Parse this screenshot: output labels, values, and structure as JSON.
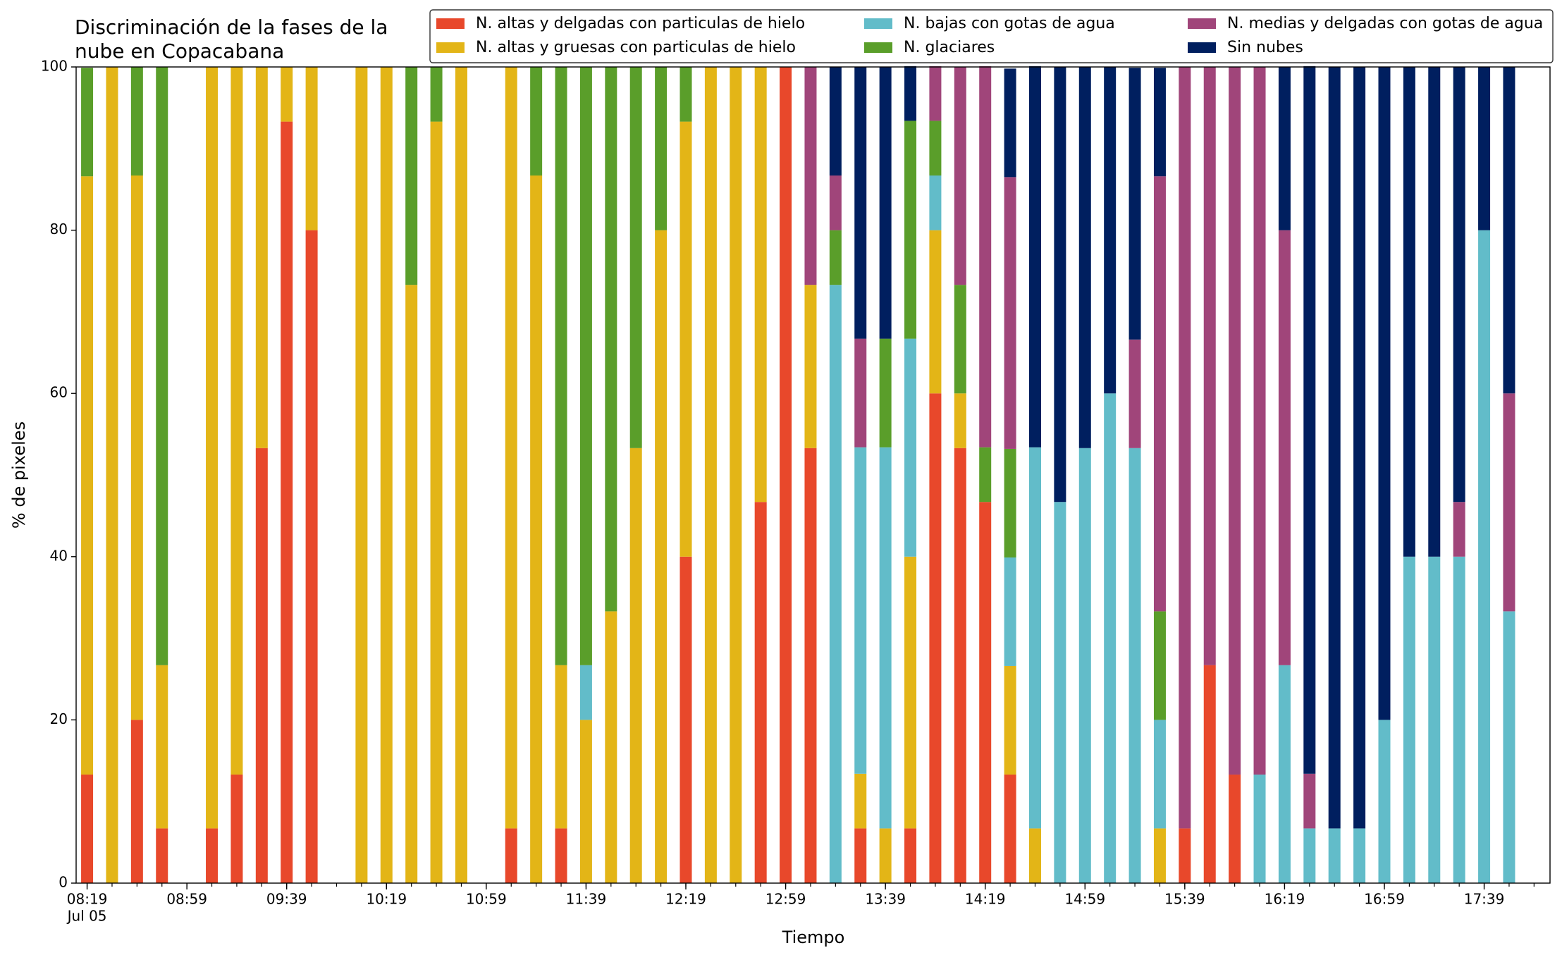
{
  "chart_data": {
    "type": "stacked_bar",
    "title": "Discriminación de la fases de la\nnube en Copacabana",
    "xlabel": "Tiempo",
    "ylabel": "% de pixeles",
    "x_date_label": "Jul 05",
    "categories": [
      "08:19",
      "08:29",
      "08:39",
      "08:49",
      "08:59",
      "09:09",
      "09:19",
      "09:29",
      "09:39",
      "09:49",
      "09:59",
      "10:09",
      "10:19",
      "10:29",
      "10:39",
      "10:49",
      "10:59",
      "11:09",
      "11:19",
      "11:29",
      "11:39",
      "11:49",
      "11:59",
      "12:09",
      "12:19",
      "12:29",
      "12:39",
      "12:49",
      "12:59",
      "13:09",
      "13:19",
      "13:29",
      "13:39",
      "13:49",
      "13:59",
      "14:09",
      "14:19",
      "14:29",
      "14:39",
      "14:49",
      "14:59",
      "15:09",
      "15:19",
      "15:29",
      "15:39",
      "15:49",
      "15:59",
      "16:09",
      "16:19",
      "16:29",
      "16:39",
      "16:49",
      "16:59",
      "17:09",
      "17:19",
      "17:29",
      "17:39",
      "17:49"
    ],
    "xticks": [
      "08:19",
      "08:59",
      "09:39",
      "10:19",
      "10:59",
      "11:39",
      "12:19",
      "12:59",
      "13:39",
      "14:19",
      "14:59",
      "15:39",
      "16:19",
      "16:59",
      "17:39"
    ],
    "ylim": [
      0,
      100
    ],
    "yticks": [
      0,
      20,
      40,
      60,
      80,
      100
    ],
    "legend": "upper right",
    "series": [
      {
        "name": "N. altas y delgadas con particulas de hielo",
        "color": "#e8482b",
        "values": [
          13.3,
          0,
          20,
          6.7,
          null,
          6.7,
          13.3,
          53.3,
          93.3,
          80,
          null,
          0,
          0,
          0,
          0,
          0,
          null,
          6.7,
          0,
          6.7,
          0,
          0,
          0,
          0,
          40,
          0,
          0,
          46.7,
          100,
          53.3,
          0,
          6.7,
          0,
          6.7,
          60,
          53.3,
          46.7,
          13.3,
          0,
          0,
          0,
          0,
          0,
          0,
          6.7,
          26.7,
          13.3,
          0,
          0,
          0,
          0,
          0,
          0,
          0,
          0,
          0,
          0,
          0
        ]
      },
      {
        "name": "N. altas y gruesas con particulas de hielo",
        "color": "#e3b517",
        "values": [
          73.3,
          100,
          66.7,
          20,
          null,
          93.3,
          86.7,
          46.7,
          6.7,
          20,
          null,
          100,
          100,
          73.3,
          93.3,
          100,
          null,
          93.3,
          86.7,
          20,
          20,
          33.3,
          53.3,
          80,
          53.3,
          100,
          100,
          53.3,
          0,
          20,
          0,
          6.7,
          6.7,
          33.3,
          20,
          6.7,
          0,
          13.3,
          6.7,
          0,
          0,
          0,
          0,
          6.7,
          0,
          0,
          0,
          0,
          0,
          0,
          0,
          0,
          0,
          0,
          0,
          0,
          0,
          0
        ]
      },
      {
        "name": "N. bajas con gotas de agua",
        "color": "#62bcc9",
        "values": [
          0,
          0,
          0,
          0,
          null,
          0,
          0,
          0,
          0,
          0,
          null,
          0,
          0,
          0,
          0,
          0,
          null,
          0,
          0,
          0,
          6.7,
          0,
          0,
          0,
          0,
          0,
          0,
          0,
          0,
          0,
          73.3,
          40,
          46.7,
          26.7,
          6.7,
          0,
          0,
          13.3,
          46.7,
          46.7,
          53.3,
          60,
          53.3,
          13.3,
          0,
          0,
          0,
          13.3,
          26.7,
          6.7,
          6.7,
          6.7,
          20,
          40,
          40,
          40,
          80,
          33.3
        ]
      },
      {
        "name": "N. glaciares",
        "color": "#5a9e2a",
        "values": [
          13.3,
          0,
          13.3,
          73.3,
          null,
          0,
          0,
          0,
          0,
          0,
          null,
          0,
          0,
          26.7,
          6.7,
          0,
          null,
          0,
          13.3,
          73.3,
          73.3,
          66.7,
          46.7,
          20,
          6.7,
          0,
          0,
          0,
          0,
          0,
          6.7,
          0,
          13.3,
          26.7,
          6.7,
          13.3,
          6.7,
          13.3,
          0,
          0,
          0,
          0,
          0,
          13.3,
          0,
          0,
          0,
          0,
          0,
          0,
          0,
          0,
          0,
          0,
          0,
          0,
          0,
          0
        ]
      },
      {
        "name": "N. medias y delgadas con gotas de agua",
        "color": "#a0457a",
        "values": [
          0,
          0,
          0,
          0,
          null,
          0,
          0,
          0,
          0,
          0,
          null,
          0,
          0,
          0,
          0,
          0,
          null,
          0,
          0,
          0,
          0,
          0,
          0,
          0,
          0,
          0,
          0,
          0,
          0,
          26.7,
          6.7,
          13.3,
          0,
          0,
          6.7,
          26.7,
          46.7,
          33.3,
          0,
          0,
          0,
          0,
          13.3,
          53.3,
          93.3,
          73.3,
          86.7,
          86.7,
          53.3,
          6.7,
          0,
          0,
          0,
          0,
          0,
          6.7,
          0,
          26.7
        ]
      },
      {
        "name": "Sin nubes",
        "color": "#001f5f",
        "values": [
          0,
          0,
          0,
          0,
          null,
          0,
          0,
          0,
          0,
          0,
          null,
          0,
          0,
          0,
          0,
          0,
          null,
          0,
          0,
          0,
          0,
          0,
          0,
          0,
          0,
          0,
          0,
          0,
          0,
          0,
          13.3,
          33.3,
          33.3,
          6.7,
          0,
          0,
          0,
          13.3,
          46.7,
          53.3,
          46.7,
          40,
          33.3,
          13.3,
          0,
          0,
          0,
          0,
          20,
          86.7,
          93.3,
          93.3,
          80,
          60,
          60,
          53.3,
          20,
          40
        ]
      }
    ]
  }
}
